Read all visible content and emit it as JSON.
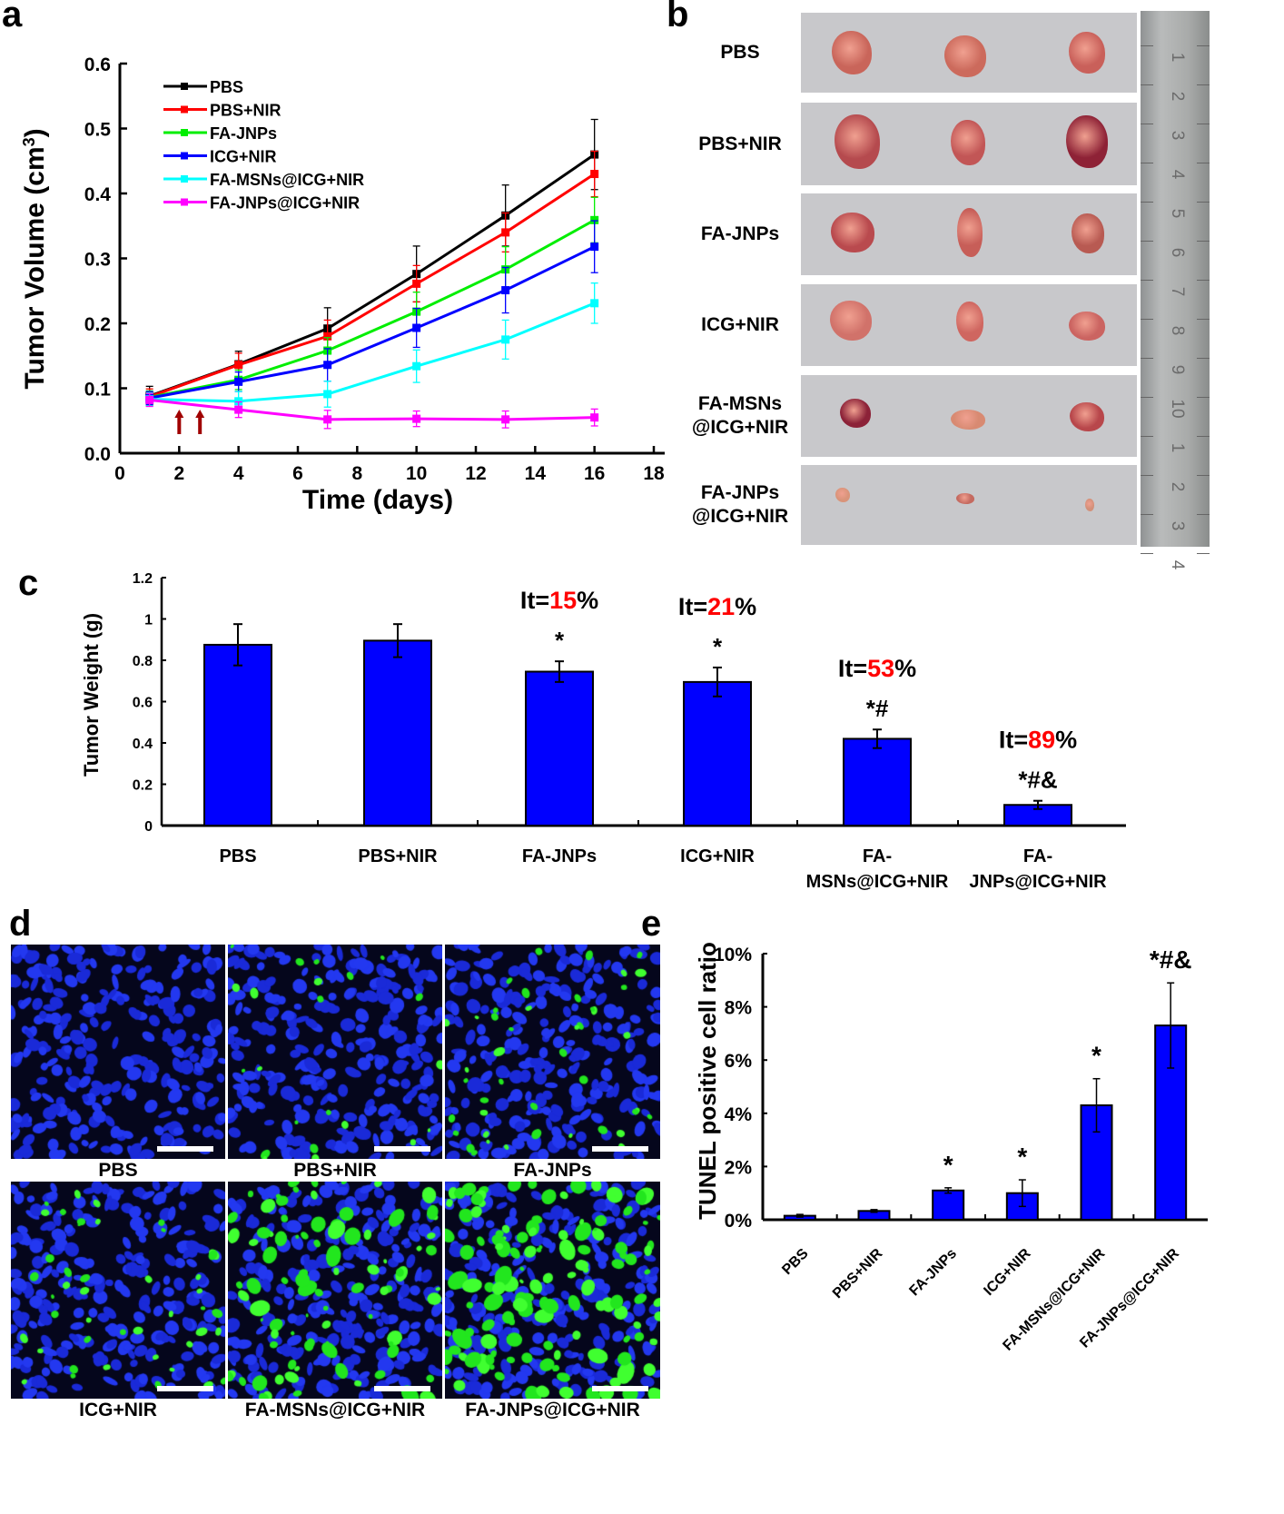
{
  "chart_data": [
    {
      "panel": "a",
      "type": "line",
      "xlabel": "Time (days)",
      "ylabel": "Tumor Volume (cm³)",
      "xlim": [
        0,
        18
      ],
      "ylim": [
        0.0,
        0.6
      ],
      "xticks": [
        "0",
        "2",
        "4",
        "6",
        "8",
        "10",
        "12",
        "14",
        "16",
        "18"
      ],
      "yticks": [
        "0.0",
        "0.1",
        "0.2",
        "0.3",
        "0.4",
        "0.5",
        "0.6"
      ],
      "x": [
        1,
        4,
        7,
        10,
        13,
        16
      ],
      "legend_position": "top-left",
      "treatment_arrows_days": [
        2,
        2.7
      ],
      "series": [
        {
          "name": "PBS",
          "color": "#000000",
          "values": [
            0.088,
            0.137,
            0.192,
            0.276,
            0.366,
            0.46
          ],
          "errors": [
            0.015,
            0.02,
            0.032,
            0.043,
            0.047,
            0.054
          ]
        },
        {
          "name": "PBS+NIR",
          "color": "#ff0000",
          "values": [
            0.087,
            0.136,
            0.18,
            0.261,
            0.34,
            0.43
          ],
          "errors": [
            0.012,
            0.018,
            0.025,
            0.028,
            0.03,
            0.035
          ]
        },
        {
          "name": "FA-JNPs",
          "color": "#00ee00",
          "values": [
            0.086,
            0.113,
            0.158,
            0.218,
            0.283,
            0.359
          ],
          "errors": [
            0.01,
            0.015,
            0.02,
            0.03,
            0.035,
            0.035
          ]
        },
        {
          "name": "ICG+NIR",
          "color": "#0000ff",
          "values": [
            0.085,
            0.11,
            0.136,
            0.193,
            0.251,
            0.318
          ],
          "errors": [
            0.01,
            0.015,
            0.025,
            0.03,
            0.035,
            0.04
          ]
        },
        {
          "name": "FA-MSNs@ICG+NIR",
          "color": "#00ffff",
          "values": [
            0.083,
            0.08,
            0.091,
            0.134,
            0.175,
            0.231
          ],
          "errors": [
            0.01,
            0.015,
            0.02,
            0.025,
            0.03,
            0.031
          ]
        },
        {
          "name": "FA-JNPs@ICG+NIR",
          "color": "#ff00ff",
          "values": [
            0.082,
            0.067,
            0.052,
            0.053,
            0.052,
            0.055
          ],
          "errors": [
            0.01,
            0.012,
            0.014,
            0.012,
            0.013,
            0.013
          ]
        }
      ]
    },
    {
      "panel": "c",
      "type": "bar",
      "ylabel": "Tumor Weight (g)",
      "ylim": [
        0,
        1.2
      ],
      "yticks": [
        "0",
        "0.2",
        "0.4",
        "0.6",
        "0.8",
        "1",
        "1.2"
      ],
      "categories": [
        "PBS",
        "PBS+NIR",
        "FA-JNPs",
        "ICG+NIR",
        "FA-MSNs@ICG+NIR",
        "FA-JNPs@ICG+NIR"
      ],
      "category_lines": [
        [
          "PBS"
        ],
        [
          "PBS+NIR"
        ],
        [
          "FA-JNPs"
        ],
        [
          "ICG+NIR"
        ],
        [
          "FA-",
          "MSNs@ICG+NIR"
        ],
        [
          "FA-",
          "JNPs@ICG+NIR"
        ]
      ],
      "values": [
        0.875,
        0.895,
        0.745,
        0.695,
        0.42,
        0.1
      ],
      "errors": [
        0.1,
        0.08,
        0.05,
        0.07,
        0.045,
        0.02
      ],
      "significance": [
        "",
        "",
        "*",
        "*",
        "*#",
        "*#&"
      ],
      "inhibition": [
        {
          "prefix": "It=",
          "value": "",
          "suffix": ""
        },
        {
          "prefix": "It=",
          "value": "",
          "suffix": ""
        },
        {
          "prefix": "It=",
          "value": "15",
          "suffix": "%"
        },
        {
          "prefix": "It=",
          "value": "21",
          "suffix": "%"
        },
        {
          "prefix": "It=",
          "value": "53",
          "suffix": "%"
        },
        {
          "prefix": "It=",
          "value": "89",
          "suffix": "%"
        }
      ],
      "bar_color": "#0000ff",
      "highlight_color": "#ff0000"
    },
    {
      "panel": "e",
      "type": "bar",
      "ylabel": "TUNEL positive cell ratio",
      "ylim": [
        0,
        10
      ],
      "yticks": [
        "0%",
        "2%",
        "4%",
        "6%",
        "8%",
        "10%"
      ],
      "categories": [
        "PBS",
        "PBS+NIR",
        "FA-JNPs",
        "ICG+NIR",
        "FA-MSNs@ICG+NIR",
        "FA-JNPs@ICG+NIR"
      ],
      "values": [
        0.15,
        0.33,
        1.1,
        1.0,
        4.3,
        7.3
      ],
      "errors": [
        0.05,
        0.05,
        0.1,
        0.5,
        1.0,
        1.6
      ],
      "significance": [
        "",
        "",
        "*",
        "*",
        "*",
        "*#&"
      ],
      "bar_color": "#0000ff"
    }
  ],
  "panels": {
    "a": {
      "letter": "a"
    },
    "b": {
      "letter": "b",
      "rows": [
        {
          "label_lines": [
            "PBS"
          ]
        },
        {
          "label_lines": [
            "PBS+NIR"
          ]
        },
        {
          "label_lines": [
            "FA-JNPs"
          ]
        },
        {
          "label_lines": [
            "ICG+NIR"
          ]
        },
        {
          "label_lines": [
            "FA-MSNs",
            "@ICG+NIR"
          ]
        },
        {
          "label_lines": [
            "FA-JNPs",
            "@ICG+NIR"
          ]
        }
      ],
      "ruler_numbers": [
        "1",
        "2",
        "3",
        "4",
        "5",
        "6",
        "7",
        "8",
        "9",
        "10",
        "1",
        "2",
        "3",
        "4"
      ]
    },
    "c": {
      "letter": "c"
    },
    "d": {
      "letter": "d",
      "images": [
        {
          "label": "PBS",
          "green_level": 0
        },
        {
          "label": "PBS+NIR",
          "green_level": 1
        },
        {
          "label": "FA-JNPs",
          "green_level": 2
        },
        {
          "label": "ICG+NIR",
          "green_level": 2
        },
        {
          "label": "FA-MSNs@ICG+NIR",
          "green_level": 4
        },
        {
          "label": "FA-JNPs@ICG+NIR",
          "green_level": 6
        }
      ]
    },
    "e": {
      "letter": "e"
    }
  }
}
